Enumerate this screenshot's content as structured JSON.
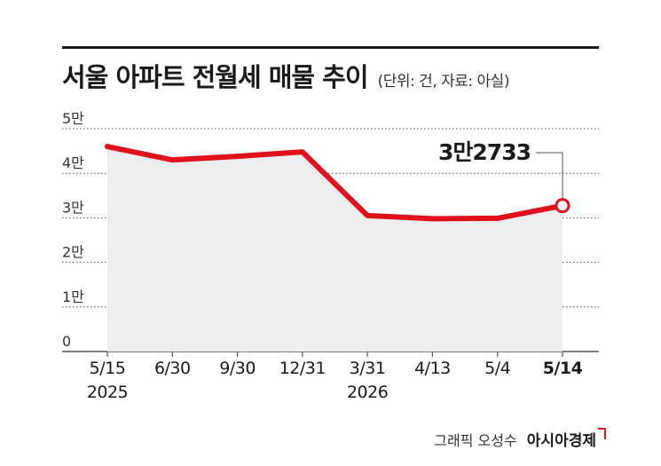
{
  "header": {
    "title": "서울 아파트 전월세 매물 추이",
    "note": "(단위: 건, 자료: 아실)"
  },
  "credit": {
    "graphic": "그래픽 오성수",
    "brand": "아시아경제"
  },
  "colors": {
    "line": "#e0111b",
    "area": "#ededed",
    "grid": "#555555",
    "text": "#1a1a1a"
  },
  "chart_data": {
    "type": "area",
    "title": "서울 아파트 전월세 매물 추이",
    "xlabel": "",
    "ylabel": "",
    "categories": [
      "5/15\n2025",
      "6/30",
      "9/30",
      "12/31",
      "3/31\n2026",
      "4/13",
      "5/4",
      "5/14"
    ],
    "values": [
      46000,
      43000,
      43800,
      44800,
      30500,
      29800,
      29900,
      32733
    ],
    "ylim": [
      0,
      50000
    ],
    "yticks": [
      0,
      10000,
      20000,
      30000,
      40000,
      50000
    ],
    "ytick_labels": [
      "0",
      "1만",
      "2만",
      "3만",
      "4만",
      "5만"
    ],
    "grid": true,
    "grid_style": "dotted",
    "annotations": [
      {
        "index": 7,
        "text": "3만2733"
      }
    ]
  }
}
